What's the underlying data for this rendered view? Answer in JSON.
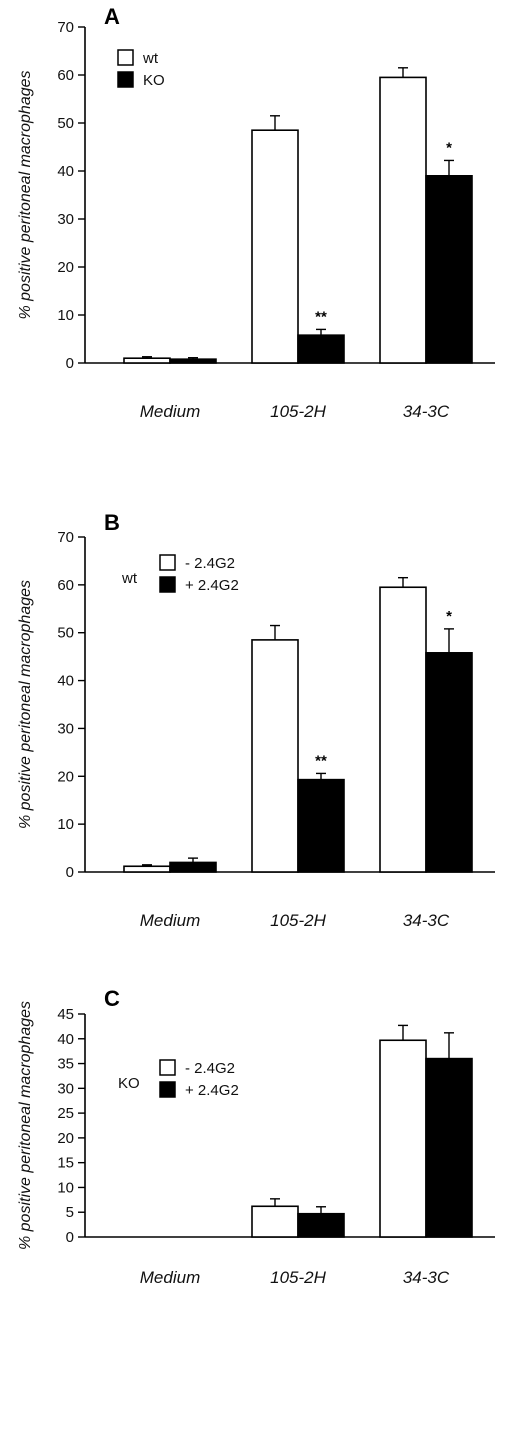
{
  "chart_data": [
    {
      "type": "bar",
      "panel_label": "A",
      "ylabel": "% positive peritoneal macrophages",
      "categories": [
        "Medium",
        "105-2H",
        "34-3C"
      ],
      "ylim": [
        0,
        70
      ],
      "yticks": [
        0,
        10,
        20,
        30,
        40,
        50,
        60,
        70
      ],
      "legend_prefix": "",
      "legend_position": "top-left",
      "series": [
        {
          "name": "wt",
          "fill": "#ffffff",
          "values": [
            1,
            48.5,
            59.5
          ],
          "errors": [
            0.3,
            3.0,
            2.0
          ]
        },
        {
          "name": "KO",
          "fill": "#000000",
          "values": [
            0.8,
            5.8,
            39
          ],
          "errors": [
            0.3,
            1.2,
            3.2
          ]
        }
      ],
      "annotations": [
        {
          "category": "105-2H",
          "series": "KO",
          "text": "**"
        },
        {
          "category": "34-3C",
          "series": "KO",
          "text": "*"
        }
      ]
    },
    {
      "type": "bar",
      "panel_label": "B",
      "ylabel": "% positive peritoneal macrophages",
      "categories": [
        "Medium",
        "105-2H",
        "34-3C"
      ],
      "ylim": [
        0,
        70
      ],
      "yticks": [
        0,
        10,
        20,
        30,
        40,
        50,
        60,
        70
      ],
      "legend_prefix": "wt",
      "legend_position": "top-left",
      "series": [
        {
          "name": "- 2.4G2",
          "fill": "#ffffff",
          "values": [
            1.2,
            48.5,
            59.5
          ],
          "errors": [
            0.3,
            3.0,
            2.0
          ]
        },
        {
          "name": "+ 2.4G2",
          "fill": "#000000",
          "values": [
            2.0,
            19.3,
            45.8
          ],
          "errors": [
            0.9,
            1.3,
            5.0
          ]
        }
      ],
      "annotations": [
        {
          "category": "105-2H",
          "series": "+ 2.4G2",
          "text": "**"
        },
        {
          "category": "34-3C",
          "series": "+ 2.4G2",
          "text": "*"
        }
      ]
    },
    {
      "type": "bar",
      "panel_label": "C",
      "ylabel": "% positive peritoneal macrophages",
      "categories": [
        "Medium",
        "105-2H",
        "34-3C"
      ],
      "ylim": [
        0,
        45
      ],
      "yticks": [
        0,
        5,
        10,
        15,
        20,
        25,
        30,
        35,
        40,
        45
      ],
      "legend_prefix": "KO",
      "legend_position": "top-left",
      "series": [
        {
          "name": "- 2.4G2",
          "fill": "#ffffff",
          "values": [
            0,
            6.2,
            39.7
          ],
          "errors": [
            0,
            1.5,
            3.0
          ]
        },
        {
          "name": "+ 2.4G2",
          "fill": "#000000",
          "values": [
            0,
            4.7,
            36.0
          ],
          "errors": [
            0,
            1.4,
            5.2
          ]
        }
      ],
      "annotations": []
    }
  ]
}
